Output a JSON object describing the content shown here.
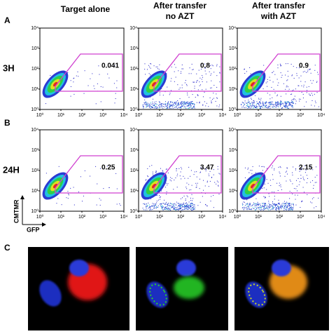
{
  "panels": {
    "A": "A",
    "B": "B",
    "C": "C"
  },
  "columns": [
    "Target alone",
    [
      "After transfer",
      "no AZT"
    ],
    [
      "After transfer",
      "with AZT"
    ]
  ],
  "rows": [
    {
      "label": "3H",
      "gates": [
        "0.041",
        "0.8",
        "0.9"
      ]
    },
    {
      "label": "24H",
      "gates": [
        "0.25",
        "3.47",
        "2.15"
      ]
    }
  ],
  "axis_ticks": [
    "10⁰",
    "10¹",
    "10²",
    "10³",
    "10⁴"
  ],
  "y_axis_label": "CMTMR",
  "x_axis_label": "GFP"
}
